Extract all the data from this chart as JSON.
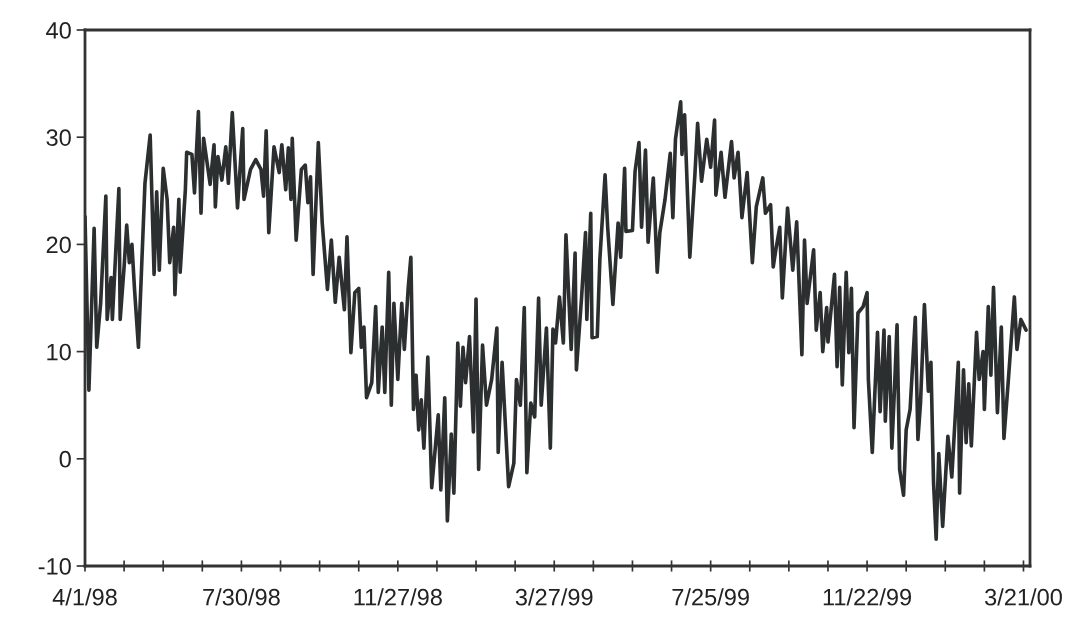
{
  "chart_data": {
    "type": "line",
    "x": [
      "1998-04-01",
      "1998-04-04",
      "1998-04-08",
      "1998-04-10",
      "1998-04-13",
      "1998-04-17",
      "1998-04-18",
      "1998-04-21",
      "1998-04-22",
      "1998-04-27",
      "1998-04-28",
      "1998-05-01",
      "1998-05-03",
      "1998-05-05",
      "1998-05-07",
      "1998-05-09",
      "1998-05-12",
      "1998-05-17",
      "1998-05-21",
      "1998-05-24",
      "1998-05-26",
      "1998-05-28",
      "1998-05-31",
      "1998-06-03",
      "1998-06-05",
      "1998-06-08",
      "1998-06-09",
      "1998-06-12",
      "1998-06-13",
      "1998-06-17",
      "1998-06-18",
      "1998-06-22",
      "1998-06-24",
      "1998-06-27",
      "1998-06-29",
      "1998-07-01",
      "1998-07-06",
      "1998-07-09",
      "1998-07-10",
      "1998-07-12",
      "1998-07-15",
      "1998-07-18",
      "1998-07-20",
      "1998-07-23",
      "1998-07-27",
      "1998-07-31",
      "1998-08-01",
      "1998-08-06",
      "1998-08-10",
      "1998-08-14",
      "1998-08-16",
      "1998-08-18",
      "1998-08-20",
      "1998-08-24",
      "1998-08-28",
      "1998-08-30",
      "1998-09-02",
      "1998-09-04",
      "1998-09-06",
      "1998-09-07",
      "1998-09-10",
      "1998-09-14",
      "1998-09-17",
      "1998-09-19",
      "1998-09-21",
      "1998-09-23",
      "1998-09-27",
      "1998-09-30",
      "1998-10-04",
      "1998-10-07",
      "1998-10-10",
      "1998-10-13",
      "1998-10-17",
      "1998-10-19",
      "1998-10-22",
      "1998-10-25",
      "1998-10-28",
      "1998-10-30",
      "1998-11-01",
      "1998-11-03",
      "1998-11-07",
      "1998-11-10",
      "1998-11-12",
      "1998-11-15",
      "1998-11-17",
      "1998-11-20",
      "1998-11-22",
      "1998-11-24",
      "1998-11-27",
      "1998-11-30",
      "1998-12-02",
      "1998-12-05",
      "1998-12-07",
      "1998-12-09",
      "1998-12-11",
      "1998-12-13",
      "1998-12-15",
      "1998-12-17",
      "1998-12-20",
      "1998-12-23",
      "1998-12-28",
      "1998-12-30",
      "1999-01-02",
      "1999-01-04",
      "1999-01-07",
      "1999-01-09",
      "1999-01-12",
      "1999-01-14",
      "1999-01-16",
      "1999-01-18",
      "1999-01-21",
      "1999-01-24",
      "1999-01-26",
      "1999-01-28",
      "1999-01-31",
      "1999-02-03",
      "1999-02-07",
      "1999-02-11",
      "1999-02-12",
      "1999-02-15",
      "1999-02-20",
      "1999-02-24",
      "1999-02-26",
      "1999-03-01",
      "1999-03-04",
      "1999-03-06",
      "1999-03-09",
      "1999-03-12",
      "1999-03-15",
      "1999-03-17",
      "1999-03-21",
      "1999-03-24",
      "1999-03-26",
      "1999-03-28",
      "1999-03-31",
      "1999-04-03",
      "1999-04-05",
      "1999-04-09",
      "1999-04-12",
      "1999-04-13",
      "1999-04-17",
      "1999-04-20",
      "1999-04-21",
      "1999-04-24",
      "1999-04-25",
      "1999-04-29",
      "1999-05-01",
      "1999-05-05",
      "1999-05-07",
      "1999-05-11",
      "1999-05-15",
      "1999-05-17",
      "1999-05-20",
      "1999-05-21",
      "1999-05-26",
      "1999-05-28",
      "1999-05-31",
      "1999-06-02",
      "1999-06-05",
      "1999-06-07",
      "1999-06-11",
      "1999-06-14",
      "1999-06-16",
      "1999-06-20",
      "1999-06-24",
      "1999-06-26",
      "1999-06-28",
      "1999-07-02",
      "1999-07-03",
      "1999-07-05",
      "1999-07-09",
      "1999-07-13",
      "1999-07-15",
      "1999-07-18",
      "1999-07-22",
      "1999-07-25",
      "1999-07-28",
      "1999-07-29",
      "1999-08-02",
      "1999-08-05",
      "1999-08-10",
      "1999-08-12",
      "1999-08-15",
      "1999-08-18",
      "1999-08-22",
      "1999-08-26",
      "1999-08-29",
      "1999-09-03",
      "1999-09-05",
      "1999-09-09",
      "1999-09-11",
      "1999-09-13",
      "1999-09-16",
      "1999-09-18",
      "1999-09-22",
      "1999-09-26",
      "1999-09-29",
      "1999-10-03",
      "1999-10-05",
      "1999-10-07",
      "1999-10-12",
      "1999-10-14",
      "1999-10-17",
      "1999-10-19",
      "1999-10-22",
      "1999-10-23",
      "1999-10-28",
      "1999-10-30",
      "1999-11-01",
      "1999-11-03",
      "1999-11-06",
      "1999-11-08",
      "1999-11-10",
      "1999-11-12",
      "1999-11-15",
      "1999-11-19",
      "1999-11-22",
      "1999-11-23",
      "1999-11-26",
      "1999-11-30",
      "1999-12-02",
      "1999-12-05",
      "1999-12-06",
      "1999-12-09",
      "1999-12-11",
      "1999-12-13",
      "1999-12-15",
      "1999-12-17",
      "1999-12-20",
      "1999-12-22",
      "1999-12-25",
      "1999-12-29",
      "1999-12-31",
      "2000-01-02",
      "2000-01-05",
      "2000-01-08",
      "2000-01-10",
      "2000-01-12",
      "2000-01-14",
      "2000-01-16",
      "2000-01-19",
      "2000-01-23",
      "2000-01-26",
      "2000-01-31",
      "2000-02-01",
      "2000-02-04",
      "2000-02-06",
      "2000-02-08",
      "2000-02-10",
      "2000-02-14",
      "2000-02-16",
      "2000-02-19",
      "2000-02-20",
      "2000-02-23",
      "2000-02-25",
      "2000-02-27",
      "2000-03-01",
      "2000-03-04",
      "2000-03-06",
      "2000-03-09",
      "2000-03-14",
      "2000-03-16",
      "2000-03-19",
      "2000-03-23"
    ],
    "series": [
      {
        "color": "#2b2f2f",
        "values": [
          22.6,
          6.4,
          21.5,
          10.4,
          14.5,
          24.5,
          13.0,
          16.9,
          13.0,
          25.2,
          13.0,
          17.9,
          21.8,
          18.3,
          20.0,
          15.8,
          10.4,
          25.7,
          30.2,
          17.2,
          24.9,
          17.6,
          27.1,
          24.2,
          18.3,
          21.6,
          15.3,
          24.2,
          17.4,
          25.1,
          28.6,
          28.4,
          24.8,
          32.4,
          22.9,
          29.9,
          25.6,
          29.3,
          23.5,
          28.2,
          26.0,
          29.1,
          25.7,
          32.3,
          23.4,
          30.8,
          24.2,
          27.0,
          27.9,
          27.0,
          24.5,
          30.6,
          21.1,
          29.1,
          26.7,
          29.3,
          25.1,
          29.0,
          24.2,
          29.9,
          20.4,
          27.0,
          27.4,
          23.9,
          26.3,
          17.2,
          29.5,
          22.0,
          15.8,
          20.4,
          14.6,
          18.8,
          13.9,
          20.7,
          9.9,
          15.5,
          15.9,
          10.4,
          12.3,
          5.7,
          7.1,
          14.2,
          6.2,
          12.3,
          6.2,
          17.4,
          5.0,
          14.5,
          7.4,
          14.5,
          10.2,
          16.0,
          18.8,
          4.6,
          7.8,
          2.7,
          5.5,
          1.0,
          9.5,
          -2.7,
          4.1,
          -2.9,
          5.7,
          -5.8,
          2.3,
          -3.2,
          10.8,
          4.9,
          10.4,
          7.1,
          11.4,
          2.5,
          14.9,
          -1.0,
          10.6,
          5.0,
          7.4,
          12.2,
          0.6,
          9.0,
          -2.6,
          -0.4,
          7.4,
          5.0,
          14.1,
          -1.3,
          5.2,
          3.9,
          15.0,
          5.0,
          12.2,
          1.0,
          12.1,
          10.8,
          15.1,
          10.8,
          20.9,
          10.2,
          19.2,
          8.3,
          15.1,
          21.1,
          13.0,
          22.9,
          11.3,
          11.4,
          18.6,
          26.5,
          21.6,
          14.4,
          22.0,
          18.8,
          27.1,
          21.2,
          21.3,
          26.8,
          29.5,
          21.6,
          28.8,
          20.2,
          26.2,
          17.4,
          21.1,
          24.2,
          28.5,
          22.5,
          29.8,
          33.3,
          28.4,
          32.1,
          18.8,
          26.7,
          31.3,
          25.9,
          29.8,
          27.2,
          31.6,
          24.6,
          28.6,
          24.4,
          29.6,
          26.2,
          28.6,
          22.5,
          26.7,
          18.3,
          23.5,
          26.2,
          22.9,
          23.7,
          17.9,
          19.5,
          21.6,
          15.0,
          23.4,
          17.6,
          22.1,
          9.7,
          20.4,
          14.5,
          19.5,
          12.0,
          15.5,
          10.0,
          14.1,
          10.9,
          17.2,
          8.6,
          16.0,
          6.9,
          17.4,
          9.9,
          15.9,
          2.9,
          13.6,
          14.2,
          15.5,
          7.4,
          0.6,
          11.8,
          4.4,
          12.0,
          3.5,
          11.4,
          1.0,
          6.4,
          12.5,
          -1.0,
          -3.4,
          2.7,
          4.6,
          13.2,
          1.8,
          5.2,
          14.4,
          6.3,
          9.0,
          -2.2,
          -7.5,
          0.5,
          -6.3,
          2.1,
          -1.7,
          9.0,
          -3.2,
          8.3,
          1.5,
          7.0,
          1.2,
          11.8,
          7.4,
          10.0,
          4.6,
          14.2,
          7.8,
          16.0,
          4.3,
          12.3,
          1.9,
          6.7,
          15.1,
          10.2,
          13.0,
          12.0
        ]
      }
    ],
    "xlim": [
      "1998-04-01",
      "2000-03-26"
    ],
    "xticks": [
      {
        "value": "1998-04-01",
        "label": "4/1/98"
      },
      {
        "value": "1998-05-01",
        "label": null
      },
      {
        "value": "1998-05-31",
        "label": null
      },
      {
        "value": "1998-06-30",
        "label": null
      },
      {
        "value": "1998-07-30",
        "label": "7/30/98"
      },
      {
        "value": "1998-08-29",
        "label": null
      },
      {
        "value": "1998-09-28",
        "label": null
      },
      {
        "value": "1998-10-28",
        "label": null
      },
      {
        "value": "1998-11-27",
        "label": "11/27/98"
      },
      {
        "value": "1998-12-27",
        "label": null
      },
      {
        "value": "1999-01-26",
        "label": null
      },
      {
        "value": "1999-02-25",
        "label": null
      },
      {
        "value": "1999-03-27",
        "label": "3/27/99"
      },
      {
        "value": "1999-04-26",
        "label": null
      },
      {
        "value": "1999-05-26",
        "label": null
      },
      {
        "value": "1999-06-25",
        "label": null
      },
      {
        "value": "1999-07-25",
        "label": "7/25/99"
      },
      {
        "value": "1999-08-24",
        "label": null
      },
      {
        "value": "1999-09-23",
        "label": null
      },
      {
        "value": "1999-10-23",
        "label": null
      },
      {
        "value": "1999-11-22",
        "label": "11/22/99"
      },
      {
        "value": "1999-12-22",
        "label": null
      },
      {
        "value": "2000-01-21",
        "label": null
      },
      {
        "value": "2000-02-20",
        "label": null
      },
      {
        "value": "2000-03-21",
        "label": "3/21/00"
      }
    ],
    "ylim": [
      -10,
      40
    ],
    "yticks": [
      -10,
      0,
      10,
      20,
      30,
      40
    ],
    "grid": false,
    "line_style": "solid",
    "marker": "none"
  }
}
